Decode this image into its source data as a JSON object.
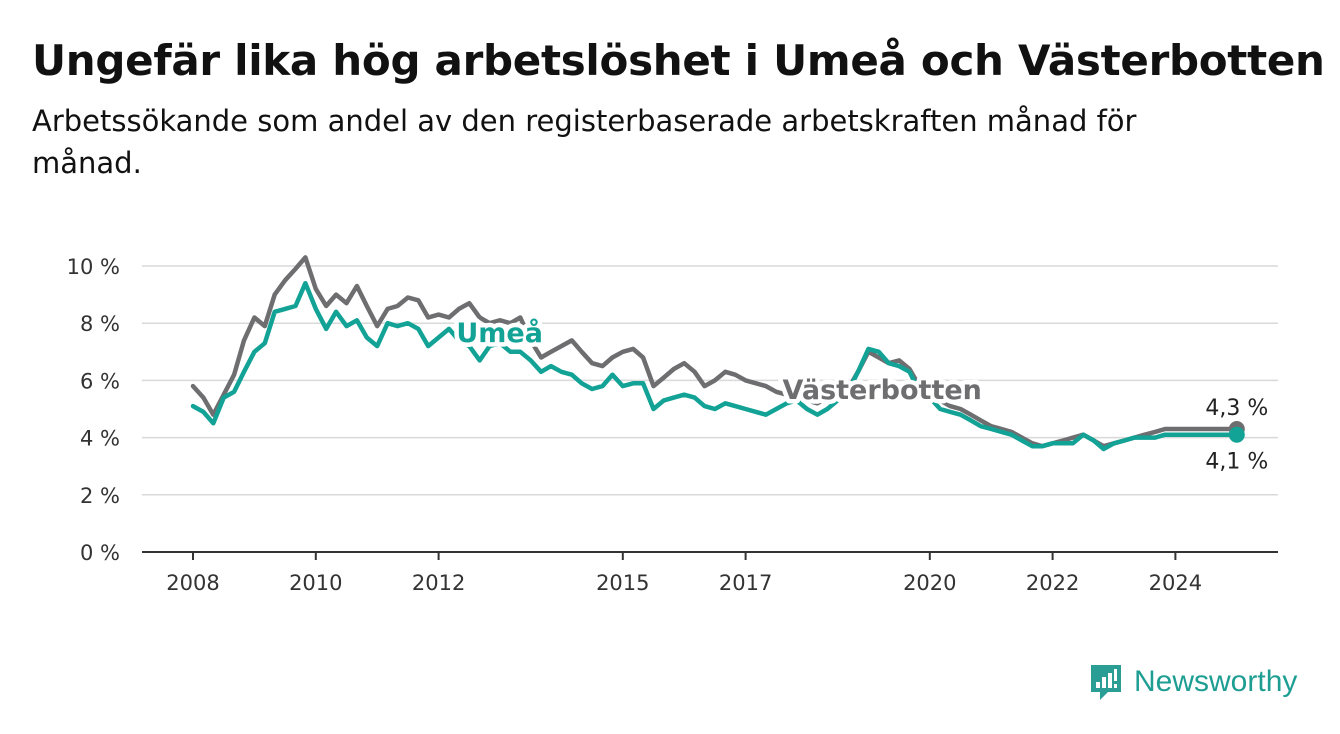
{
  "title": "Ungefär lika hög arbetslöshet i Umeå och Västerbotten",
  "subtitle": "Arbetssökande som andel av den registerbaserade arbetskraften månad för månad.",
  "brand": {
    "name": "Newsworthy",
    "icon": "newsworthy-logo-icon",
    "color": "#2a9d94"
  },
  "chart_data": {
    "type": "line",
    "title": "Ungefär lika hög arbetslöshet i Umeå och Västerbotten",
    "subtitle": "Arbetssökande som andel av den registerbaserade arbetskraften månad för månad.",
    "xlabel": "",
    "ylabel": "",
    "xlim": [
      2008,
      2025.6
    ],
    "ylim": [
      0,
      10
    ],
    "x_ticks": [
      2008,
      2010,
      2012,
      2015,
      2017,
      2020,
      2022,
      2024
    ],
    "y_ticks": [
      0,
      2,
      4,
      6,
      8,
      10
    ],
    "y_tick_labels": [
      "0 %",
      "2 %",
      "4 %",
      "6 %",
      "8 %",
      "10 %"
    ],
    "grid": "horizontal",
    "legend": "inline labels",
    "series": [
      {
        "name": "Västerbotten",
        "color": "#6e6e70",
        "x": [
          2008.0,
          2008.17,
          2008.33,
          2008.5,
          2008.67,
          2008.83,
          2009.0,
          2009.17,
          2009.33,
          2009.5,
          2009.67,
          2009.83,
          2010.0,
          2010.17,
          2010.33,
          2010.5,
          2010.67,
          2010.83,
          2011.0,
          2011.17,
          2011.33,
          2011.5,
          2011.67,
          2011.83,
          2012.0,
          2012.17,
          2012.33,
          2012.5,
          2012.67,
          2012.83,
          2013.0,
          2013.17,
          2013.33,
          2013.5,
          2013.67,
          2013.83,
          2014.0,
          2014.17,
          2014.33,
          2014.5,
          2014.67,
          2014.83,
          2015.0,
          2015.17,
          2015.33,
          2015.5,
          2015.67,
          2015.83,
          2016.0,
          2016.17,
          2016.33,
          2016.5,
          2016.67,
          2016.83,
          2017.0,
          2017.17,
          2017.33,
          2017.5,
          2017.67,
          2017.83,
          2018.0,
          2018.17,
          2018.33,
          2018.5,
          2018.67,
          2018.83,
          2019.0,
          2019.17,
          2019.33,
          2019.5,
          2019.67,
          2019.83,
          2020.0,
          2020.17,
          2020.33,
          2020.5,
          2020.67,
          2020.83,
          2021.0,
          2021.17,
          2021.33,
          2021.5,
          2021.67,
          2021.83,
          2022.0,
          2022.17,
          2022.33,
          2022.5,
          2022.67,
          2022.83,
          2023.0,
          2023.17,
          2023.33,
          2023.5,
          2023.67,
          2023.83,
          2024.0,
          2024.17,
          2024.33,
          2024.5,
          2024.67,
          2024.83,
          2025.0
        ],
        "values": [
          5.8,
          5.4,
          4.8,
          5.5,
          6.2,
          7.4,
          8.2,
          7.9,
          9.0,
          9.5,
          9.9,
          10.3,
          9.2,
          8.6,
          9.0,
          8.7,
          9.3,
          8.6,
          7.9,
          8.5,
          8.6,
          8.9,
          8.8,
          8.2,
          8.3,
          8.2,
          8.5,
          8.7,
          8.2,
          8.0,
          8.1,
          8.0,
          8.2,
          7.4,
          6.8,
          7.0,
          7.2,
          7.4,
          7.0,
          6.6,
          6.5,
          6.8,
          7.0,
          7.1,
          6.8,
          5.8,
          6.1,
          6.4,
          6.6,
          6.3,
          5.8,
          6.0,
          6.3,
          6.2,
          6.0,
          5.9,
          5.8,
          5.6,
          5.5,
          5.4,
          5.3,
          5.2,
          5.4,
          5.5,
          5.7,
          6.3,
          7.0,
          6.8,
          6.6,
          6.7,
          6.4,
          5.8,
          5.6,
          5.3,
          5.1,
          5.0,
          4.8,
          4.6,
          4.4,
          4.3,
          4.2,
          4.0,
          3.8,
          3.7,
          3.8,
          3.9,
          4.0,
          4.1,
          3.9,
          3.7,
          3.8,
          3.9,
          4.0,
          4.1,
          4.2,
          4.3,
          4.3,
          4.3,
          4.3,
          4.3,
          4.3,
          4.3,
          4.3
        ],
        "end_label": "4,3 %"
      },
      {
        "name": "Umeå",
        "color": "#13a396",
        "x": [
          2008.0,
          2008.17,
          2008.33,
          2008.5,
          2008.67,
          2008.83,
          2009.0,
          2009.17,
          2009.33,
          2009.5,
          2009.67,
          2009.83,
          2010.0,
          2010.17,
          2010.33,
          2010.5,
          2010.67,
          2010.83,
          2011.0,
          2011.17,
          2011.33,
          2011.5,
          2011.67,
          2011.83,
          2012.0,
          2012.17,
          2012.33,
          2012.5,
          2012.67,
          2012.83,
          2013.0,
          2013.17,
          2013.33,
          2013.5,
          2013.67,
          2013.83,
          2014.0,
          2014.17,
          2014.33,
          2014.5,
          2014.67,
          2014.83,
          2015.0,
          2015.17,
          2015.33,
          2015.5,
          2015.67,
          2015.83,
          2016.0,
          2016.17,
          2016.33,
          2016.5,
          2016.67,
          2016.83,
          2017.0,
          2017.17,
          2017.33,
          2017.5,
          2017.67,
          2017.83,
          2018.0,
          2018.17,
          2018.33,
          2018.5,
          2018.67,
          2018.83,
          2019.0,
          2019.17,
          2019.33,
          2019.5,
          2019.67,
          2019.83,
          2020.0,
          2020.17,
          2020.33,
          2020.5,
          2020.67,
          2020.83,
          2021.0,
          2021.17,
          2021.33,
          2021.5,
          2021.67,
          2021.83,
          2022.0,
          2022.17,
          2022.33,
          2022.5,
          2022.67,
          2022.83,
          2023.0,
          2023.17,
          2023.33,
          2023.5,
          2023.67,
          2023.83,
          2024.0,
          2024.17,
          2024.33,
          2024.5,
          2024.67,
          2024.83,
          2025.0
        ],
        "values": [
          5.1,
          4.9,
          4.5,
          5.4,
          5.6,
          6.3,
          7.0,
          7.3,
          8.4,
          8.5,
          8.6,
          9.4,
          8.5,
          7.8,
          8.4,
          7.9,
          8.1,
          7.5,
          7.2,
          8.0,
          7.9,
          8.0,
          7.8,
          7.2,
          7.5,
          7.8,
          7.4,
          7.2,
          6.7,
          7.2,
          7.3,
          7.0,
          7.0,
          6.7,
          6.3,
          6.5,
          6.3,
          6.2,
          5.9,
          5.7,
          5.8,
          6.2,
          5.8,
          5.9,
          5.9,
          5.0,
          5.3,
          5.4,
          5.5,
          5.4,
          5.1,
          5.0,
          5.2,
          5.1,
          5.0,
          4.9,
          4.8,
          5.0,
          5.2,
          5.3,
          5.0,
          4.8,
          5.0,
          5.3,
          5.6,
          6.3,
          7.1,
          7.0,
          6.6,
          6.5,
          6.3,
          5.6,
          5.4,
          5.0,
          4.9,
          4.8,
          4.6,
          4.4,
          4.3,
          4.2,
          4.1,
          3.9,
          3.7,
          3.7,
          3.8,
          3.8,
          3.8,
          4.1,
          3.9,
          3.6,
          3.8,
          3.9,
          4.0,
          4.0,
          4.0,
          4.1,
          4.1,
          4.1,
          4.1,
          4.1,
          4.1,
          4.1,
          4.1
        ],
        "end_label": "4,1 %"
      }
    ]
  }
}
